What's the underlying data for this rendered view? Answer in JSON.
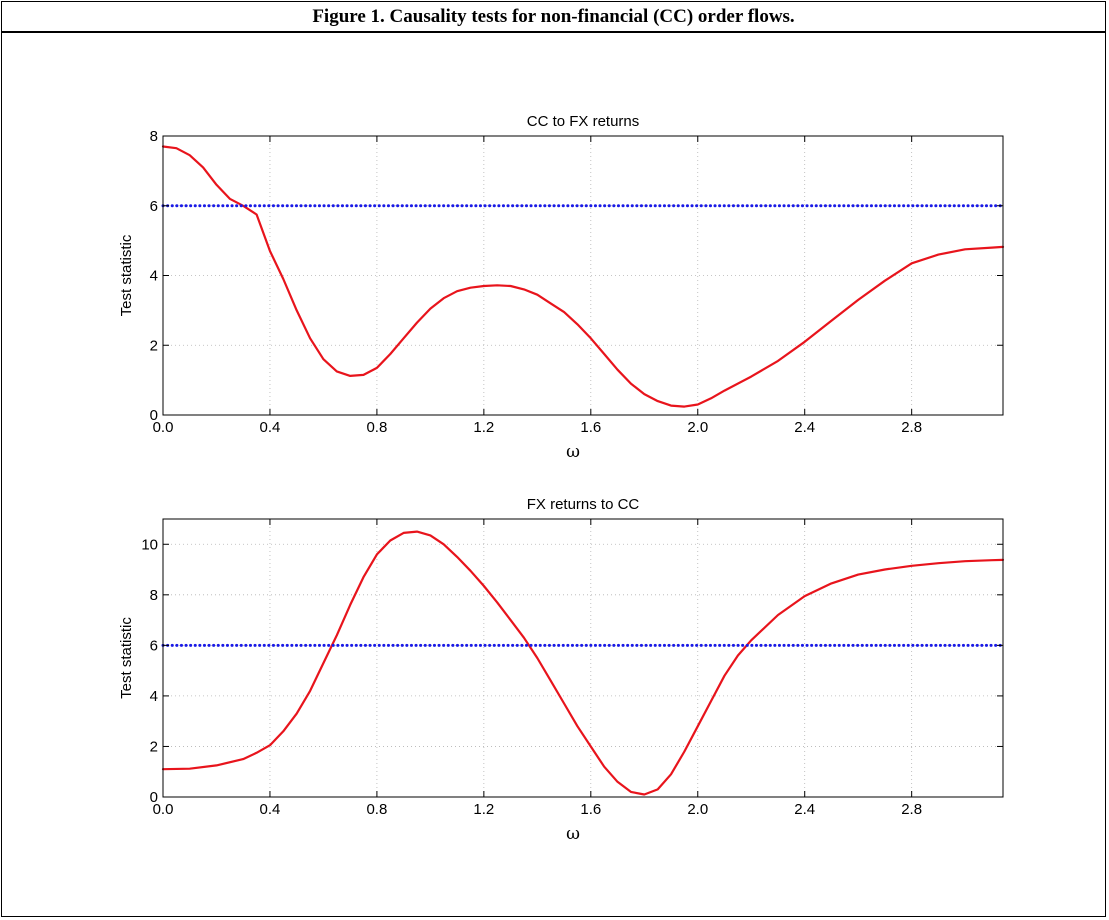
{
  "figure": {
    "caption": "Figure 1. Causality tests for non-financial (CC) order flows."
  },
  "chart_data": [
    {
      "type": "line",
      "title": "CC to FX returns",
      "xlabel": "ω",
      "ylabel": "Test statistic",
      "xlim": [
        0,
        3.1416
      ],
      "ylim": [
        0,
        8
      ],
      "xticks": [
        0.0,
        0.4,
        0.8,
        1.2,
        1.6,
        2.0,
        2.4,
        2.8
      ],
      "xtick_labels": [
        "0.0",
        "0.4",
        "0.8",
        "1.2",
        "1.6",
        "2.0",
        "2.4",
        "2.8"
      ],
      "yticks": [
        0,
        2,
        4,
        6,
        8
      ],
      "ytick_labels": [
        "0",
        "2",
        "4",
        "6",
        "8"
      ],
      "grid": true,
      "series": [
        {
          "color": "#e8141c",
          "style": "solid",
          "x": [
            0.0,
            0.05,
            0.1,
            0.15,
            0.2,
            0.25,
            0.3,
            0.35,
            0.4,
            0.45,
            0.5,
            0.55,
            0.6,
            0.65,
            0.7,
            0.75,
            0.8,
            0.85,
            0.9,
            0.95,
            1.0,
            1.05,
            1.1,
            1.15,
            1.2,
            1.25,
            1.3,
            1.35,
            1.4,
            1.45,
            1.5,
            1.55,
            1.6,
            1.65,
            1.7,
            1.75,
            1.8,
            1.85,
            1.9,
            1.95,
            2.0,
            2.05,
            2.1,
            2.2,
            2.3,
            2.4,
            2.5,
            2.6,
            2.7,
            2.8,
            2.9,
            3.0,
            3.1,
            3.1416
          ],
          "y": [
            7.7,
            7.65,
            7.45,
            7.1,
            6.6,
            6.2,
            6.0,
            5.75,
            4.7,
            3.9,
            3.0,
            2.2,
            1.6,
            1.25,
            1.12,
            1.15,
            1.35,
            1.75,
            2.2,
            2.65,
            3.05,
            3.35,
            3.55,
            3.65,
            3.7,
            3.72,
            3.7,
            3.6,
            3.45,
            3.2,
            2.95,
            2.6,
            2.2,
            1.75,
            1.3,
            0.9,
            0.6,
            0.4,
            0.27,
            0.24,
            0.3,
            0.48,
            0.7,
            1.1,
            1.55,
            2.1,
            2.7,
            3.3,
            3.85,
            4.35,
            4.6,
            4.75,
            4.8,
            4.82
          ]
        },
        {
          "color": "#1a1ae6",
          "style": "dotted",
          "x": [
            0.0,
            3.1416
          ],
          "y": [
            6.0,
            6.0
          ]
        }
      ]
    },
    {
      "type": "line",
      "title": "FX returns to CC",
      "xlabel": "ω",
      "ylabel": "Test statistic",
      "xlim": [
        0,
        3.1416
      ],
      "ylim": [
        0,
        11
      ],
      "xticks": [
        0.0,
        0.4,
        0.8,
        1.2,
        1.6,
        2.0,
        2.4,
        2.8
      ],
      "xtick_labels": [
        "0.0",
        "0.4",
        "0.8",
        "1.2",
        "1.6",
        "2.0",
        "2.4",
        "2.8"
      ],
      "yticks": [
        0,
        2,
        4,
        6,
        8,
        10
      ],
      "ytick_labels": [
        "0",
        "2",
        "4",
        "6",
        "8",
        "10"
      ],
      "grid": true,
      "series": [
        {
          "color": "#e8141c",
          "style": "solid",
          "x": [
            0.0,
            0.1,
            0.2,
            0.3,
            0.35,
            0.4,
            0.45,
            0.5,
            0.55,
            0.6,
            0.65,
            0.7,
            0.75,
            0.8,
            0.85,
            0.9,
            0.95,
            1.0,
            1.05,
            1.1,
            1.15,
            1.2,
            1.25,
            1.3,
            1.35,
            1.4,
            1.45,
            1.5,
            1.55,
            1.6,
            1.65,
            1.7,
            1.75,
            1.8,
            1.85,
            1.9,
            1.95,
            2.0,
            2.05,
            2.1,
            2.15,
            2.2,
            2.3,
            2.4,
            2.5,
            2.6,
            2.7,
            2.8,
            2.9,
            3.0,
            3.1,
            3.1416
          ],
          "y": [
            1.1,
            1.12,
            1.25,
            1.5,
            1.75,
            2.05,
            2.6,
            3.3,
            4.2,
            5.3,
            6.4,
            7.6,
            8.7,
            9.6,
            10.15,
            10.45,
            10.5,
            10.35,
            10.0,
            9.5,
            8.95,
            8.35,
            7.7,
            7.0,
            6.3,
            5.5,
            4.6,
            3.7,
            2.8,
            2.0,
            1.2,
            0.6,
            0.2,
            0.1,
            0.3,
            0.9,
            1.8,
            2.8,
            3.8,
            4.8,
            5.6,
            6.2,
            7.2,
            7.95,
            8.45,
            8.8,
            9.0,
            9.15,
            9.25,
            9.33,
            9.37,
            9.38
          ]
        },
        {
          "color": "#1a1ae6",
          "style": "dotted",
          "x": [
            0.0,
            3.1416
          ],
          "y": [
            6.0,
            6.0
          ]
        }
      ]
    }
  ]
}
